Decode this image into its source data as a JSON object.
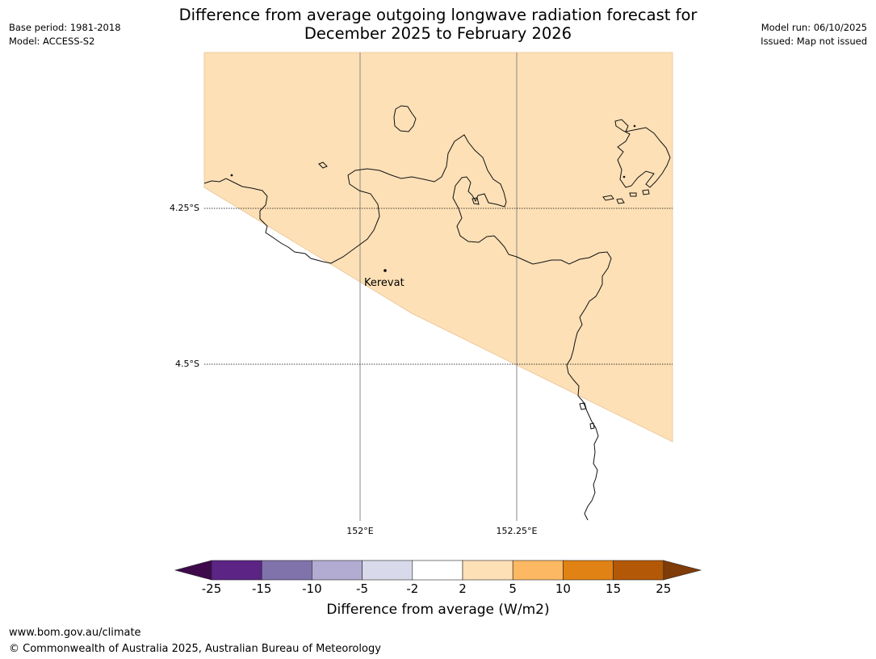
{
  "header": {
    "title_line1": "Difference from average outgoing longwave radiation forecast for",
    "title_line2": "December 2025 to February 2026",
    "base_period": "Base period: 1981-2018",
    "model": "Model: ACCESS-S2",
    "model_run": "Model run: 06/10/2025",
    "issued": "Issued: Map not issued"
  },
  "map": {
    "lat_labels": [
      "4.25°S",
      "4.5°S"
    ],
    "lon_labels": [
      "152°E",
      "152.25°E"
    ],
    "places": [
      {
        "name": "Kerevat"
      }
    ],
    "forecast_fill_color": "#fde0b6",
    "forecast_category": "2 to 5"
  },
  "colorbar": {
    "ticks": [
      "-25",
      "-15",
      "-10",
      "-5",
      "-2",
      "2",
      "5",
      "10",
      "15",
      "25"
    ],
    "colors": [
      "#3f0a4c",
      "#5b2485",
      "#8073ac",
      "#b2abd2",
      "#d8daeb",
      "#ffffff",
      "#fde0b6",
      "#fdb863",
      "#e08214",
      "#b35806",
      "#7f3b08"
    ],
    "label": "Difference from average (W/m2)"
  },
  "footer": {
    "url": "www.bom.gov.au/climate",
    "copyright": "© Commonwealth of Australia 2025, Australian Bureau of Meteorology"
  }
}
